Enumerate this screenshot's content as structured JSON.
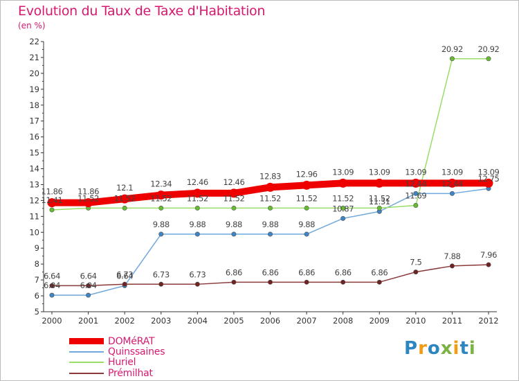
{
  "title": "Evolution du Taux de Taxe d'Habitation",
  "subtitle": "(en %)",
  "logo": {
    "text": "Proxiti",
    "letters": [
      {
        "ch": "P",
        "color": "#2e86c1"
      },
      {
        "ch": "r",
        "color": "#f39c12"
      },
      {
        "ch": "o",
        "color": "#2e86c1"
      },
      {
        "ch": "x",
        "color": "#7cb342"
      },
      {
        "ch": "i",
        "color": "#f39c12"
      },
      {
        "ch": "t",
        "color": "#2e86c1"
      },
      {
        "ch": "i",
        "color": "#7cb342"
      }
    ]
  },
  "chart_data": {
    "type": "line",
    "title": "Evolution du Taux de Taxe d'Habitation",
    "ylabel": "(en %)",
    "x": [
      "2000",
      "2001",
      "2002",
      "2003",
      "2004",
      "2005",
      "2006",
      "2007",
      "2008",
      "2009",
      "2010",
      "2011",
      "2012"
    ],
    "ylim": [
      5,
      22
    ],
    "yticks": [
      5,
      6,
      7,
      8,
      9,
      10,
      11,
      12,
      13,
      14,
      15,
      16,
      17,
      18,
      19,
      20,
      21,
      22
    ],
    "grid": false,
    "legend_position": "bottom-left",
    "series": [
      {
        "name": "DOMéRAT",
        "color": "#ee0000",
        "values": [
          11.86,
          11.86,
          12.1,
          12.34,
          12.46,
          12.46,
          12.83,
          12.96,
          13.09,
          13.09,
          13.09,
          13.09,
          13.09
        ],
        "labels": [
          "11.86",
          "11.86",
          "12.1",
          "12.34",
          "12.46",
          "12.46",
          "12.83",
          "12.96",
          "13.09",
          "13.09",
          "13.09",
          "13.09",
          "13.09"
        ]
      },
      {
        "name": "Quinssaines",
        "color": "#6fa8dc",
        "marker_color": "#3d85c6",
        "values": [
          6.04,
          6.04,
          6.64,
          9.88,
          9.88,
          9.88,
          9.88,
          9.88,
          10.87,
          11.31,
          12.44,
          12.44,
          12.75
        ],
        "labels": [
          "6.04",
          "6.04",
          "6.64",
          "9.88",
          "9.88",
          "9.88",
          "9.88",
          "9.88",
          "10.87",
          "11.31",
          "12.44",
          "12.44",
          "12.75"
        ]
      },
      {
        "name": "Huriel",
        "color": "#99dd66",
        "marker_color": "#66bb33",
        "values": [
          11.41,
          11.52,
          11.52,
          11.52,
          11.52,
          11.52,
          11.52,
          11.52,
          11.52,
          11.52,
          11.69,
          20.92,
          20.92
        ],
        "labels": [
          "11.41",
          "11.52",
          "11.52",
          "11.52",
          "11.52",
          "11.52",
          "11.52",
          "11.52",
          "11.52",
          "11.52",
          "11.69",
          "20.92",
          "20.92"
        ]
      },
      {
        "name": "Prémilhat",
        "color": "#8b3a3a",
        "marker_color": "#6e2222",
        "values": [
          6.64,
          6.64,
          6.73,
          6.73,
          6.73,
          6.86,
          6.86,
          6.86,
          6.86,
          6.86,
          7.5,
          7.88,
          7.96
        ],
        "labels": [
          "6.64",
          "6.64",
          "6.73",
          "6.73",
          "6.73",
          "6.86",
          "6.86",
          "6.86",
          "6.86",
          "6.86",
          "7.5",
          "7.88",
          "7.96"
        ]
      }
    ]
  }
}
